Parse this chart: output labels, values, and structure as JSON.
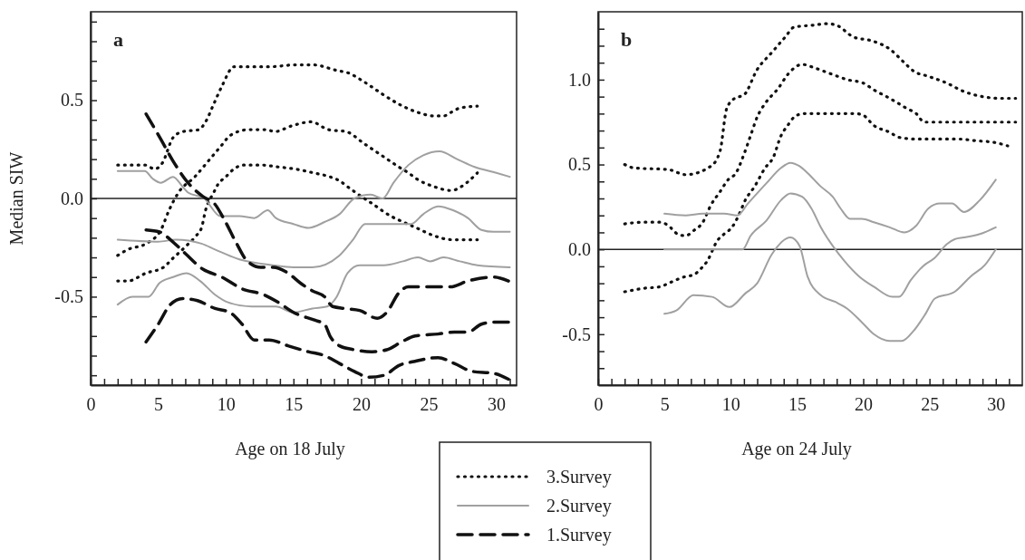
{
  "chart_data": [
    {
      "type": "line",
      "xlabel": "Age on 18 July",
      "ylabel": "Median SIW",
      "annotations": [
        "a"
      ],
      "legend": "bottom",
      "grid": false,
      "xlim": [
        0,
        31.5
      ],
      "ylim": [
        -0.95,
        0.95
      ],
      "xticks": [
        0,
        {
          "value": 1,
          "label": null
        },
        {
          "value": 2,
          "label": null
        },
        {
          "value": 3,
          "label": null
        },
        {
          "value": 4,
          "label": null
        },
        5,
        {
          "value": 6,
          "label": null
        },
        {
          "value": 7,
          "label": null
        },
        {
          "value": 8,
          "label": null
        },
        {
          "value": 9,
          "label": null
        },
        10,
        {
          "value": 11,
          "label": null
        },
        {
          "value": 12,
          "label": null
        },
        {
          "value": 13,
          "label": null
        },
        {
          "value": 14,
          "label": null
        },
        15,
        {
          "value": 16,
          "label": null
        },
        {
          "value": 17,
          "label": null
        },
        {
          "value": 18,
          "label": null
        },
        {
          "value": 19,
          "label": null
        },
        20,
        {
          "value": 21,
          "label": null
        },
        {
          "value": 22,
          "label": null
        },
        {
          "value": 23,
          "label": null
        },
        {
          "value": 24,
          "label": null
        },
        25,
        {
          "value": 26,
          "label": null
        },
        {
          "value": 27,
          "label": null
        },
        {
          "value": 28,
          "label": null
        },
        {
          "value": 29,
          "label": null
        },
        30,
        {
          "value": 31,
          "label": null
        }
      ],
      "yticks": [
        {
          "value": -0.9,
          "label": null
        },
        {
          "value": -0.8,
          "label": null
        },
        {
          "value": -0.7,
          "label": null
        },
        {
          "value": -0.6,
          "label": null
        },
        {
          "value": -0.5,
          "label": "-0.5"
        },
        {
          "value": -0.4,
          "label": null
        },
        {
          "value": -0.3,
          "label": null
        },
        {
          "value": -0.2,
          "label": null
        },
        {
          "value": -0.1,
          "label": null
        },
        {
          "value": 0,
          "label": "0.0"
        },
        {
          "value": 0.1,
          "label": null
        },
        {
          "value": 0.2,
          "label": null
        },
        {
          "value": 0.3,
          "label": null
        },
        {
          "value": 0.4,
          "label": null
        },
        {
          "value": 0.5,
          "label": "0.5"
        },
        {
          "value": 0.6,
          "label": null
        },
        {
          "value": 0.7,
          "label": null
        },
        {
          "value": 0.8,
          "label": null
        },
        {
          "value": 0.9,
          "label": null
        }
      ],
      "ref_lines": [
        {
          "axis": "y",
          "value": 0,
          "label": null
        }
      ],
      "series": [
        {
          "color": "#111111",
          "line_style": "dotted",
          "x": [
            2,
            4,
            4.75,
            5.3,
            6.1,
            6.8,
            8,
            8.5,
            9.1,
            9.7,
            10.6,
            11.9,
            13.2,
            15.2,
            16.4,
            18.3,
            19,
            20.3,
            21.6,
            22.8,
            24.1,
            25.4,
            26.1,
            26.7,
            27.3,
            28.6
          ],
          "values": [
            0.17,
            0.17,
            0.15,
            0.18,
            0.31,
            0.34,
            0.35,
            0.39,
            0.48,
            0.57,
            0.67,
            0.67,
            0.67,
            0.68,
            0.68,
            0.65,
            0.64,
            0.59,
            0.53,
            0.48,
            0.44,
            0.42,
            0.42,
            0.44,
            0.46,
            0.47
          ]
        },
        {
          "name": "3.Survey",
          "color": "#111111",
          "line_style": "dotted",
          "x": [
            2,
            2.75,
            4.1,
            5.2,
            5.8,
            6.5,
            7.7,
            8.7,
            9.8,
            10.3,
            11.7,
            13,
            13.6,
            14.9,
            16.3,
            17.6,
            18.9,
            20.2,
            21.5,
            22.8,
            23.5,
            24.1,
            25.4,
            26.7,
            27.4,
            28.6
          ],
          "values": [
            -0.29,
            -0.26,
            -0.23,
            -0.16,
            -0.06,
            0.03,
            0.11,
            0.19,
            0.28,
            0.32,
            0.35,
            0.35,
            0.34,
            0.37,
            0.39,
            0.35,
            0.34,
            0.28,
            0.22,
            0.16,
            0.13,
            0.1,
            0.06,
            0.04,
            0.06,
            0.13
          ]
        },
        {
          "color": "#111111",
          "line_style": "dotted",
          "x": [
            2,
            2.75,
            4.1,
            5.4,
            6,
            7.1,
            7.8,
            8.2,
            8.5,
            9.1,
            9.4,
            10,
            10.6,
            11.3,
            12.6,
            13.9,
            15.1,
            16.5,
            17.7,
            18.4,
            19,
            19.6,
            20.9,
            22.2,
            22.8,
            24.1,
            25.4,
            26.7,
            28.6
          ],
          "values": [
            -0.42,
            -0.42,
            -0.38,
            -0.35,
            -0.31,
            -0.24,
            -0.19,
            -0.15,
            -0.06,
            0.03,
            0.07,
            0.11,
            0.15,
            0.17,
            0.17,
            0.16,
            0.15,
            0.13,
            0.11,
            0.09,
            0.06,
            0.03,
            -0.03,
            -0.09,
            -0.11,
            -0.15,
            -0.19,
            -0.21,
            -0.21
          ]
        },
        {
          "color": "#a0a0a0",
          "line_style": "solid",
          "x": [
            2,
            4,
            4.6,
            5.2,
            6.1,
            6.8,
            7.2,
            8.4,
            9.6,
            11,
            12.1,
            13.1,
            13.7,
            15,
            16.1,
            17.3,
            18.4,
            19.5,
            20.7,
            21.6,
            22.4,
            23.5,
            24.6,
            25.8,
            27.1,
            28.4,
            30,
            31
          ],
          "values": [
            0.14,
            0.14,
            0.1,
            0.08,
            0.11,
            0.06,
            0.03,
            0,
            -0.09,
            -0.09,
            -0.1,
            -0.06,
            -0.1,
            -0.13,
            -0.15,
            -0.12,
            -0.08,
            0,
            0.02,
            0,
            0.08,
            0.17,
            0.22,
            0.24,
            0.2,
            0.16,
            0.13,
            0.11
          ]
        },
        {
          "name": "2.Survey",
          "color": "#a0a0a0",
          "line_style": "solid",
          "x": [
            2,
            5,
            6.3,
            8.2,
            9.2,
            11,
            13.5,
            15,
            16.4,
            18.4,
            19.4,
            20.3,
            21.5,
            23.7,
            24.6,
            25.7,
            26.8,
            27.9,
            28.9,
            29.8,
            31
          ],
          "values": [
            -0.21,
            -0.22,
            -0.21,
            -0.23,
            -0.26,
            -0.31,
            -0.34,
            -0.35,
            -0.35,
            -0.29,
            -0.21,
            -0.13,
            -0.13,
            -0.13,
            -0.08,
            -0.04,
            -0.06,
            -0.1,
            -0.16,
            -0.17,
            -0.17
          ]
        },
        {
          "color": "#a0a0a0",
          "line_style": "solid",
          "x": [
            2,
            3.1,
            4.3,
            5.1,
            6.1,
            7.1,
            8.1,
            9.2,
            10.2,
            11.9,
            13.7,
            15,
            16.4,
            17.5,
            18.2,
            19,
            19.9,
            21.7,
            23.1,
            24.2,
            25.1,
            26.1,
            27.3,
            28.6,
            31
          ],
          "values": [
            -0.54,
            -0.5,
            -0.5,
            -0.43,
            -0.4,
            -0.38,
            -0.42,
            -0.49,
            -0.53,
            -0.55,
            -0.55,
            -0.58,
            -0.56,
            -0.55,
            -0.5,
            -0.38,
            -0.34,
            -0.34,
            -0.32,
            -0.3,
            -0.32,
            -0.3,
            -0.32,
            -0.34,
            -0.35
          ]
        },
        {
          "color": "#111111",
          "line_style": "dashed",
          "x": [
            4.1,
            5.2,
            6.1,
            7.2,
            8.3,
            9.2,
            9.9,
            10.8,
            11.6,
            12.6,
            13.5,
            14.6,
            15.5,
            16.4,
            17.3,
            17.9,
            18.8,
            19.9,
            21.2,
            21.9,
            22.8,
            23.5,
            25.1,
            26.6,
            27.9,
            29.8,
            30.9
          ],
          "values": [
            0.43,
            0.3,
            0.19,
            0.08,
            0.01,
            -0.03,
            -0.11,
            -0.23,
            -0.32,
            -0.35,
            -0.35,
            -0.38,
            -0.43,
            -0.47,
            -0.5,
            -0.55,
            -0.56,
            -0.57,
            -0.61,
            -0.58,
            -0.48,
            -0.45,
            -0.45,
            -0.45,
            -0.42,
            -0.4,
            -0.42
          ]
        },
        {
          "name": "1.Survey",
          "color": "#111111",
          "line_style": "dashed",
          "x": [
            4.1,
            5.1,
            5.9,
            7,
            8.3,
            9.7,
            11.2,
            12.8,
            13.9,
            15,
            16.6,
            17.3,
            17.7,
            18.4,
            19.5,
            20.8,
            21.9,
            23,
            24,
            25.7,
            26.9,
            27.9,
            28.9,
            29.8,
            30.9
          ],
          "values": [
            -0.16,
            -0.17,
            -0.21,
            -0.28,
            -0.36,
            -0.4,
            -0.46,
            -0.49,
            -0.53,
            -0.58,
            -0.62,
            -0.64,
            -0.7,
            -0.75,
            -0.77,
            -0.78,
            -0.77,
            -0.73,
            -0.7,
            -0.69,
            -0.68,
            -0.68,
            -0.64,
            -0.63,
            -0.63
          ]
        },
        {
          "color": "#111111",
          "line_style": "dashed",
          "x": [
            4.1,
            5,
            5.9,
            6.8,
            7.9,
            9.2,
            10.3,
            11.2,
            12.1,
            13.2,
            14.6,
            16.1,
            17.3,
            18.4,
            19.5,
            20.6,
            21.7,
            22.8,
            23.9,
            25.7,
            26.9,
            28.2,
            29.8,
            30.9
          ],
          "values": [
            -0.73,
            -0.64,
            -0.54,
            -0.51,
            -0.52,
            -0.56,
            -0.58,
            -0.64,
            -0.72,
            -0.72,
            -0.75,
            -0.78,
            -0.8,
            -0.84,
            -0.88,
            -0.91,
            -0.9,
            -0.85,
            -0.83,
            -0.81,
            -0.84,
            -0.88,
            -0.89,
            -0.92
          ]
        }
      ]
    },
    {
      "type": "line",
      "xlabel": "Age on 24 July",
      "annotations": [
        "b"
      ],
      "grid": false,
      "xlim": [
        0,
        32
      ],
      "ylim": [
        -0.8,
        1.4
      ],
      "xticks": [
        0,
        {
          "value": 1,
          "label": null
        },
        {
          "value": 2,
          "label": null
        },
        {
          "value": 3,
          "label": null
        },
        {
          "value": 4,
          "label": null
        },
        5,
        {
          "value": 6,
          "label": null
        },
        {
          "value": 7,
          "label": null
        },
        {
          "value": 8,
          "label": null
        },
        {
          "value": 9,
          "label": null
        },
        10,
        {
          "value": 11,
          "label": null
        },
        {
          "value": 12,
          "label": null
        },
        {
          "value": 13,
          "label": null
        },
        {
          "value": 14,
          "label": null
        },
        15,
        {
          "value": 16,
          "label": null
        },
        {
          "value": 17,
          "label": null
        },
        {
          "value": 18,
          "label": null
        },
        {
          "value": 19,
          "label": null
        },
        20,
        {
          "value": 21,
          "label": null
        },
        {
          "value": 22,
          "label": null
        },
        {
          "value": 23,
          "label": null
        },
        {
          "value": 24,
          "label": null
        },
        25,
        {
          "value": 26,
          "label": null
        },
        {
          "value": 27,
          "label": null
        },
        {
          "value": 28,
          "label": null
        },
        {
          "value": 29,
          "label": null
        },
        30,
        {
          "value": 31,
          "label": null
        }
      ],
      "yticks": [
        {
          "value": -0.7,
          "label": null
        },
        {
          "value": -0.6,
          "label": null
        },
        {
          "value": -0.5,
          "label": "-0.5"
        },
        {
          "value": -0.4,
          "label": null
        },
        {
          "value": -0.3,
          "label": null
        },
        {
          "value": -0.2,
          "label": null
        },
        {
          "value": -0.1,
          "label": null
        },
        {
          "value": 0,
          "label": "0.0"
        },
        {
          "value": 0.1,
          "label": null
        },
        {
          "value": 0.2,
          "label": null
        },
        {
          "value": 0.3,
          "label": null
        },
        {
          "value": 0.4,
          "label": null
        },
        {
          "value": 0.5,
          "label": "0.5"
        },
        {
          "value": 0.6,
          "label": null
        },
        {
          "value": 0.7,
          "label": null
        },
        {
          "value": 0.8,
          "label": null
        },
        {
          "value": 0.9,
          "label": null
        },
        {
          "value": 1,
          "label": "1.0"
        },
        {
          "value": 1.1,
          "label": null
        },
        {
          "value": 1.2,
          "label": null
        },
        {
          "value": 1.3,
          "label": null
        }
      ],
      "ref_lines": [
        {
          "axis": "y",
          "value": 0,
          "label": null
        }
      ],
      "series": [
        {
          "color": "#111111",
          "line_style": "dotted",
          "x": [
            2,
            2.7,
            5.3,
            6.6,
            8.5,
            9.2,
            9.7,
            10.3,
            11,
            12,
            13.1,
            14.1,
            14.8,
            16.1,
            17.3,
            18,
            19.3,
            20.6,
            22,
            23.1,
            23.8,
            24.9,
            26.3,
            27.6,
            29,
            30.4,
            31.5
          ],
          "values": [
            0.5,
            0.48,
            0.47,
            0.44,
            0.49,
            0.58,
            0.83,
            0.89,
            0.91,
            1.06,
            1.16,
            1.25,
            1.31,
            1.32,
            1.33,
            1.32,
            1.25,
            1.23,
            1.18,
            1.1,
            1.05,
            1.02,
            0.98,
            0.93,
            0.9,
            0.89,
            0.89
          ]
        },
        {
          "color": "#111111",
          "line_style": "dotted",
          "x": [
            2,
            3.4,
            4.7,
            5.3,
            6,
            6.6,
            7.2,
            7.9,
            8.5,
            9.2,
            9.8,
            10.4,
            11,
            11.5,
            12,
            12.6,
            13.6,
            14.3,
            15.4,
            16.3,
            17.7,
            18.8,
            20,
            20.8,
            22,
            23.3,
            24,
            24.6,
            25.4,
            27.6,
            29.9,
            31.5
          ],
          "values": [
            0.15,
            0.16,
            0.16,
            0.14,
            0.09,
            0.08,
            0.11,
            0.16,
            0.26,
            0.34,
            0.41,
            0.45,
            0.56,
            0.67,
            0.78,
            0.86,
            0.95,
            1.03,
            1.09,
            1.07,
            1.03,
            1,
            0.98,
            0.94,
            0.89,
            0.83,
            0.8,
            0.75,
            0.75,
            0.75,
            0.75,
            0.75
          ]
        },
        {
          "color": "#111111",
          "line_style": "dotted",
          "x": [
            2,
            3.4,
            4.7,
            5.3,
            6.6,
            7.2,
            7.8,
            8.3,
            8.6,
            8.9,
            9.5,
            10.1,
            10.6,
            11.1,
            11.8,
            12.6,
            13.2,
            13.8,
            14.3,
            14.8,
            15.5,
            16.8,
            18.1,
            19.4,
            20,
            20.8,
            22,
            22.7,
            24,
            25.4,
            27.2,
            28.5,
            29.9,
            30.9
          ],
          "values": [
            -0.25,
            -0.23,
            -0.22,
            -0.2,
            -0.16,
            -0.15,
            -0.11,
            -0.06,
            -0.01,
            0.04,
            0.09,
            0.13,
            0.2,
            0.29,
            0.37,
            0.48,
            0.54,
            0.67,
            0.73,
            0.78,
            0.8,
            0.8,
            0.8,
            0.8,
            0.79,
            0.73,
            0.69,
            0.66,
            0.65,
            0.65,
            0.65,
            0.64,
            0.63,
            0.61
          ]
        },
        {
          "color": "#a0a0a0",
          "line_style": "solid",
          "x": [
            5,
            6.6,
            7.9,
            9.5,
            10.5,
            11.3,
            12.7,
            13.8,
            14.5,
            15.2,
            15.8,
            16.8,
            17.7,
            18.3,
            19,
            19.9,
            20.8,
            22,
            23.1,
            24,
            24.9,
            25.8,
            26.7,
            27.6,
            28.8,
            30
          ],
          "values": [
            0.21,
            0.2,
            0.21,
            0.21,
            0.2,
            0.27,
            0.39,
            0.48,
            0.51,
            0.49,
            0.45,
            0.37,
            0.31,
            0.24,
            0.18,
            0.18,
            0.16,
            0.13,
            0.1,
            0.14,
            0.24,
            0.27,
            0.27,
            0.22,
            0.29,
            0.41
          ]
        },
        {
          "color": "#a0a0a0",
          "line_style": "solid",
          "x": [
            5,
            10.2,
            10.9,
            11.5,
            12.7,
            13.8,
            14.5,
            15.4,
            16.1,
            16.8,
            17.7,
            18.6,
            19.7,
            20.8,
            22.2,
            22.7,
            23.6,
            24.5,
            25.4,
            26.3,
            26.9,
            27.6,
            28.8,
            30
          ],
          "values": [
            0,
            0,
            0,
            0.08,
            0.17,
            0.29,
            0.33,
            0.31,
            0.24,
            0.13,
            0.02,
            -0.07,
            -0.16,
            -0.22,
            -0.28,
            -0.28,
            -0.18,
            -0.1,
            -0.05,
            0.03,
            0.06,
            0.07,
            0.09,
            0.13
          ]
        },
        {
          "color": "#a0a0a0",
          "line_style": "solid",
          "x": [
            5,
            5.9,
            7.2,
            8.6,
            9.9,
            11.1,
            12,
            13.1,
            14.5,
            15.2,
            15.8,
            16.8,
            17.9,
            18.8,
            19.9,
            20.8,
            22,
            22.9,
            23.8,
            24.7,
            25.4,
            26.9,
            28.1,
            29.2,
            30
          ],
          "values": [
            -0.38,
            -0.36,
            -0.27,
            -0.28,
            -0.34,
            -0.26,
            -0.2,
            -0.03,
            0.07,
            0.02,
            -0.16,
            -0.27,
            -0.31,
            -0.35,
            -0.43,
            -0.5,
            -0.54,
            -0.54,
            -0.48,
            -0.38,
            -0.29,
            -0.25,
            -0.16,
            -0.09,
            0
          ]
        }
      ]
    }
  ]
}
